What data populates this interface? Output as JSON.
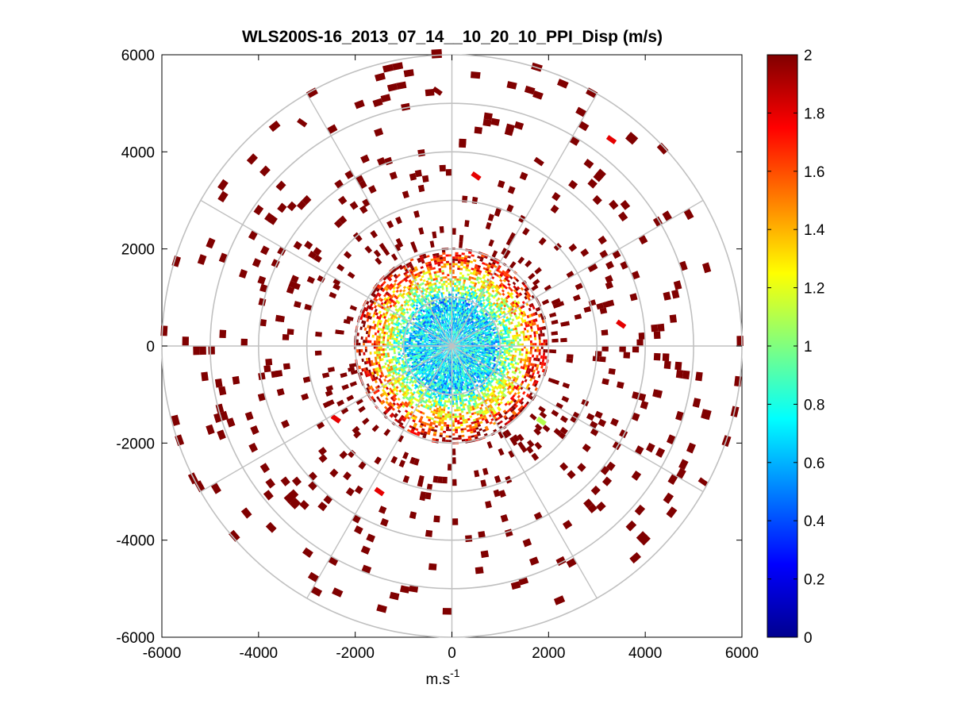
{
  "chart_data": {
    "type": "polar-ppi",
    "title": "WLS200S-16_2013_07_14__10_20_10_PPI_Disp (m/s)",
    "xlabel": "m.s",
    "xlabel_superscript": "-1",
    "ylabel": "",
    "xlim": [
      -6000,
      6000
    ],
    "ylim": [
      -6000,
      6000
    ],
    "xticks": [
      -6000,
      -4000,
      -2000,
      0,
      2000,
      4000,
      6000
    ],
    "yticks": [
      6000,
      4000,
      2000,
      0,
      -2000,
      -4000,
      -6000
    ],
    "xtick_labels": [
      "-6000",
      "-4000",
      "-2000",
      "0",
      "2000",
      "4000",
      "6000"
    ],
    "ytick_labels": [
      "6000",
      "4000",
      "2000",
      "0",
      "-2000",
      "-4000",
      "-6000"
    ],
    "range_rings": [
      1000,
      2000,
      3000,
      4000,
      5000,
      6000
    ],
    "azimuth_spokes_deg": [
      0,
      30,
      60,
      90,
      120,
      150,
      180,
      210,
      240,
      270,
      300,
      330
    ],
    "colorbar": {
      "min": 0,
      "max": 2,
      "colormap": "jet",
      "ticks": [
        2,
        1.8,
        1.6,
        1.4,
        1.2,
        1,
        0.8,
        0.6,
        0.4,
        0.2,
        0
      ],
      "tick_labels": [
        "2",
        "1.8",
        "1.6",
        "1.4",
        "1.2",
        "1",
        "0.8",
        "0.6",
        "0.4",
        "0.2",
        "0"
      ]
    },
    "grid": true,
    "approx_pattern": {
      "near_range_m": 900,
      "near_range_value": 0.7,
      "mid_range_m": 2000,
      "mid_range_value": 1.5,
      "far_range_value": 2.0
    },
    "sample_gates": [
      {
        "x": 3300,
        "y": 4250,
        "value": 1.8
      },
      {
        "x": 500,
        "y": 3500,
        "value": 1.8
      },
      {
        "x": -2400,
        "y": -1500,
        "value": 1.8
      },
      {
        "x": -1500,
        "y": -3000,
        "value": 1.8
      },
      {
        "x": 1850,
        "y": -1550,
        "value": 1.1
      },
      {
        "x": 3500,
        "y": 450,
        "value": 1.8
      },
      {
        "x": -3100,
        "y": 4600,
        "value": 2.0
      },
      {
        "x": -300,
        "y": 5250,
        "value": 2.0
      },
      {
        "x": 1800,
        "y": 3800,
        "value": 2.0
      },
      {
        "x": 5200,
        "y": -2800,
        "value": 2.0
      }
    ]
  }
}
